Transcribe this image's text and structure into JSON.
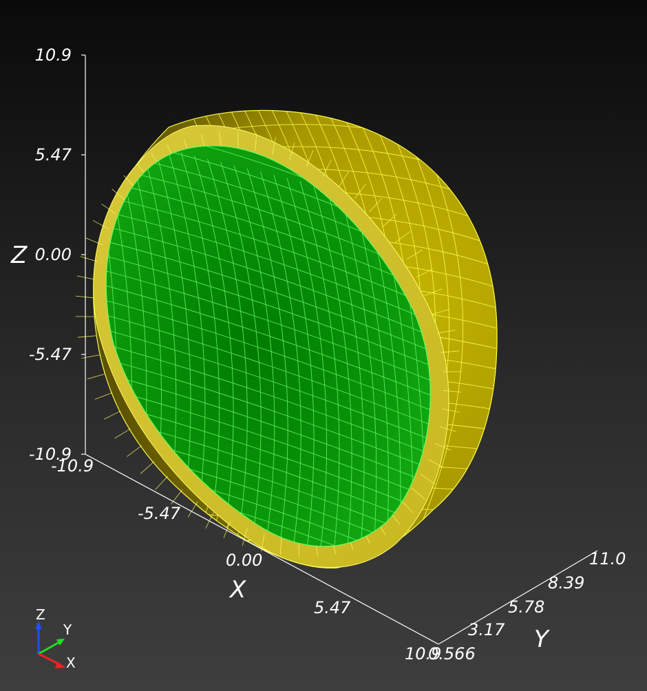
{
  "scene": {
    "background_top": "#0a0a0a",
    "background_bottom": "#3e3e3e",
    "shell_color": "#b8a800",
    "shell_edge_color": "#ffff44",
    "inner_color": "#0a9a0a",
    "inner_edge_color": "#66ff66"
  },
  "axes": {
    "z": {
      "title": "Z",
      "ticks": [
        "10.9",
        "5.47",
        "0.00",
        "-5.47",
        "-10.9"
      ]
    },
    "x": {
      "title": "X",
      "ticks": [
        "-10.9",
        "-5.47",
        "0.00",
        "5.47",
        "10.9"
      ]
    },
    "y": {
      "title": "Y",
      "ticks": [
        "0.566",
        "3.17",
        "5.78",
        "8.39",
        "11.0"
      ]
    }
  },
  "orientation_widget": {
    "z_label": "Z",
    "y_label": "Y",
    "x_label": "X",
    "z_color": "#1f4dff",
    "y_color": "#22dd22",
    "x_color": "#ee2222"
  }
}
